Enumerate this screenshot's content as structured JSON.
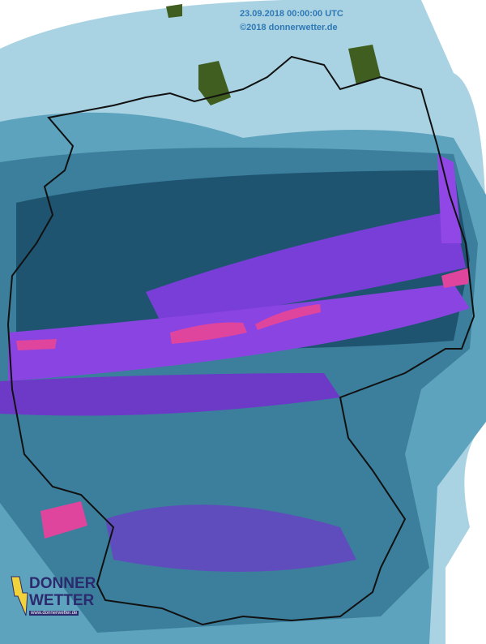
{
  "header": {
    "timestamp": "23.09.2018 00:00:00 UTC",
    "copyright": "©2018 donnerwetter.de"
  },
  "logo": {
    "line1": "DONNER",
    "line2": "WETTER",
    "url": "www.donnerwetter.de"
  },
  "map": {
    "region": "Germany",
    "layer": "radar / cloud intensity",
    "colors": {
      "light": "#a9d3e3",
      "mid": "#5ea3bd",
      "teal": "#3b7f9c",
      "dark": "#1f5470",
      "purple": "#7a3ed8",
      "violet": "#9146e6",
      "pink": "#e0459e",
      "land_green": "#3f5e1f"
    }
  }
}
